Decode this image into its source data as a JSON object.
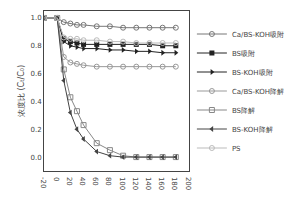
{
  "chart_data": {
    "type": "line",
    "y_label": "浓度比 (Cₜ/C₀)",
    "x": [
      -20,
      0,
      10,
      20,
      30,
      40,
      60,
      80,
      100,
      120,
      140,
      160,
      180
    ],
    "series": [
      {
        "name": "Ca/BS-KOH吸附",
        "color": "#777777",
        "marker": "circle-open",
        "values": [
          1.0,
          1.0,
          0.97,
          0.96,
          0.95,
          0.95,
          0.94,
          0.94,
          0.93,
          0.93,
          0.93,
          0.93,
          0.93
        ]
      },
      {
        "name": "BS吸附",
        "color": "#222222",
        "marker": "square",
        "values": [
          1.0,
          1.0,
          0.85,
          0.83,
          0.82,
          0.81,
          0.81,
          0.81,
          0.81,
          0.81,
          0.81,
          0.8,
          0.8
        ]
      },
      {
        "name": "BS-KOH吸附",
        "color": "#222222",
        "marker": "triangle-right",
        "values": [
          1.0,
          1.0,
          0.83,
          0.8,
          0.79,
          0.78,
          0.78,
          0.77,
          0.77,
          0.76,
          0.76,
          0.75,
          0.75
        ]
      },
      {
        "name": "Ca/BS-KOH降解",
        "color": "#999999",
        "marker": "circle-open",
        "values": [
          1.0,
          1.0,
          0.72,
          0.68,
          0.67,
          0.66,
          0.65,
          0.65,
          0.65,
          0.65,
          0.65,
          0.65,
          0.65
        ]
      },
      {
        "name": "BS降解",
        "color": "#888888",
        "marker": "square-open",
        "values": [
          1.0,
          1.0,
          0.63,
          0.43,
          0.33,
          0.23,
          0.1,
          0.05,
          0.01,
          0.0,
          0.0,
          0.0,
          0.0
        ]
      },
      {
        "name": "BS-KOH降解",
        "color": "#444444",
        "marker": "triangle-left",
        "values": [
          1.0,
          1.0,
          0.55,
          0.32,
          0.2,
          0.13,
          0.04,
          0.01,
          0.0,
          0.0,
          0.0,
          0.0,
          0.0
        ]
      },
      {
        "name": "PS",
        "color": "#bbbbbb",
        "marker": "circle-open",
        "values": [
          1.0,
          1.0,
          0.86,
          0.85,
          0.85,
          0.84,
          0.84,
          0.83,
          0.83,
          0.82,
          0.82,
          0.82,
          0.82
        ]
      }
    ],
    "line_style": "solid",
    "xlim": [
      -20,
      200
    ],
    "xticks": [
      -20,
      0,
      20,
      40,
      60,
      80,
      100,
      120,
      140,
      160,
      180,
      200
    ],
    "ylim": [
      -0.1,
      1.05
    ],
    "yticks": [
      {
        "value": 0.0,
        "label": "0.0"
      },
      0.2,
      0.4,
      0.6,
      0.8,
      {
        "value": 1.0,
        "label": "1.0"
      }
    ],
    "grid": false,
    "legend": "right"
  }
}
